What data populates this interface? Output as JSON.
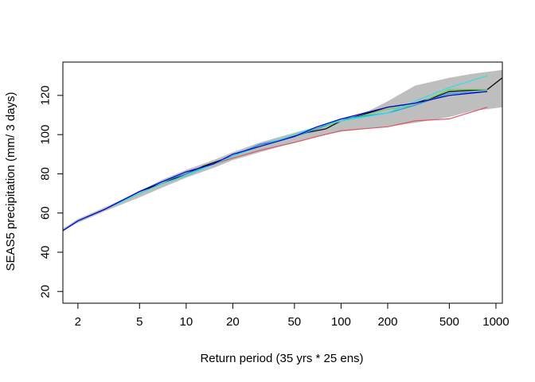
{
  "chart_data": {
    "type": "line",
    "title": "",
    "xlabel": "Return period (35 yrs * 25 ens)",
    "ylabel": "SEAS5 precipitation (mm/ 3 days)",
    "x_scale": "log",
    "xlim": [
      1.6,
      1100
    ],
    "ylim": [
      14,
      137
    ],
    "x_ticks": [
      2,
      5,
      10,
      20,
      50,
      100,
      200,
      500,
      1000
    ],
    "y_ticks": [
      20,
      40,
      60,
      80,
      100,
      120
    ],
    "grid": false,
    "band": {
      "color": "#bebebe",
      "lower": [
        [
          1.6,
          51
        ],
        [
          2,
          55
        ],
        [
          3,
          61
        ],
        [
          5,
          68
        ],
        [
          7,
          73
        ],
        [
          10,
          78
        ],
        [
          15,
          83
        ],
        [
          20,
          87
        ],
        [
          30,
          91
        ],
        [
          50,
          96
        ],
        [
          70,
          99
        ],
        [
          100,
          101.5
        ],
        [
          150,
          103
        ],
        [
          200,
          104
        ],
        [
          300,
          106
        ],
        [
          500,
          109
        ],
        [
          700,
          112
        ],
        [
          1100,
          114
        ]
      ],
      "upper": [
        [
          1.6,
          52
        ],
        [
          2,
          57
        ],
        [
          3,
          63
        ],
        [
          5,
          71
        ],
        [
          7,
          77
        ],
        [
          10,
          82
        ],
        [
          15,
          87
        ],
        [
          20,
          91
        ],
        [
          30,
          96
        ],
        [
          50,
          101
        ],
        [
          70,
          104
        ],
        [
          100,
          108
        ],
        [
          150,
          112
        ],
        [
          200,
          117
        ],
        [
          300,
          125
        ],
        [
          500,
          129
        ],
        [
          700,
          131
        ],
        [
          1100,
          133
        ]
      ]
    },
    "series": [
      {
        "color": "#000000",
        "points": [
          [
            1.6,
            51
          ],
          [
            2,
            56
          ],
          [
            3,
            62
          ],
          [
            5,
            71
          ],
          [
            7,
            75
          ],
          [
            10,
            80
          ],
          [
            13,
            84
          ],
          [
            20,
            89
          ],
          [
            30,
            95
          ],
          [
            40,
            97
          ],
          [
            60,
            101
          ],
          [
            80,
            103
          ],
          [
            100,
            107
          ],
          [
            150,
            111
          ],
          [
            200,
            114
          ],
          [
            300,
            116
          ],
          [
            400,
            119
          ],
          [
            500,
            122
          ],
          [
            880,
            123
          ],
          [
            1100,
            129
          ]
        ]
      },
      {
        "color": "#df536b",
        "points": [
          [
            1.6,
            51
          ],
          [
            2,
            56
          ],
          [
            3,
            62
          ],
          [
            5,
            70
          ],
          [
            7,
            75
          ],
          [
            10,
            79
          ],
          [
            15,
            85
          ],
          [
            20,
            88
          ],
          [
            30,
            92
          ],
          [
            50,
            96
          ],
          [
            70,
            99
          ],
          [
            100,
            102
          ],
          [
            200,
            104
          ],
          [
            300,
            107
          ],
          [
            500,
            108
          ],
          [
            880,
            114
          ]
        ]
      },
      {
        "color": "#61d04f",
        "points": [
          [
            1.6,
            51
          ],
          [
            2,
            56
          ],
          [
            3,
            62
          ],
          [
            5,
            70
          ],
          [
            7,
            75
          ],
          [
            10,
            79
          ],
          [
            15,
            85
          ],
          [
            20,
            89
          ],
          [
            30,
            94
          ],
          [
            50,
            99
          ],
          [
            70,
            103
          ],
          [
            100,
            107
          ],
          [
            200,
            113
          ],
          [
            300,
            115
          ],
          [
            500,
            123
          ],
          [
            880,
            123
          ]
        ]
      },
      {
        "color": "#2297e6",
        "points": [
          [
            1.6,
            51
          ],
          [
            2,
            56
          ],
          [
            3,
            62
          ],
          [
            5,
            71
          ],
          [
            7,
            76
          ],
          [
            10,
            80
          ],
          [
            15,
            85
          ],
          [
            20,
            89
          ],
          [
            30,
            95
          ],
          [
            50,
            99
          ],
          [
            70,
            103
          ],
          [
            100,
            108
          ],
          [
            200,
            111
          ],
          [
            300,
            115
          ],
          [
            500,
            121
          ],
          [
            880,
            122
          ]
        ]
      },
      {
        "color": "#28e2e5",
        "points": [
          [
            1.6,
            51
          ],
          [
            2,
            56
          ],
          [
            3,
            62
          ],
          [
            5,
            70
          ],
          [
            7,
            75
          ],
          [
            10,
            79
          ],
          [
            15,
            85
          ],
          [
            20,
            89
          ],
          [
            30,
            94
          ],
          [
            50,
            100
          ],
          [
            70,
            104
          ],
          [
            100,
            107
          ],
          [
            200,
            111
          ],
          [
            300,
            117
          ],
          [
            500,
            124
          ],
          [
            880,
            130
          ]
        ]
      },
      {
        "color": "#0000cd",
        "points": [
          [
            1.6,
            51
          ],
          [
            2,
            56
          ],
          [
            3,
            62
          ],
          [
            5,
            71
          ],
          [
            7,
            76
          ],
          [
            10,
            81
          ],
          [
            15,
            85
          ],
          [
            20,
            90
          ],
          [
            30,
            94
          ],
          [
            50,
            99
          ],
          [
            70,
            104
          ],
          [
            100,
            108
          ],
          [
            200,
            114
          ],
          [
            300,
            116
          ],
          [
            500,
            120
          ],
          [
            880,
            122
          ]
        ]
      }
    ]
  }
}
